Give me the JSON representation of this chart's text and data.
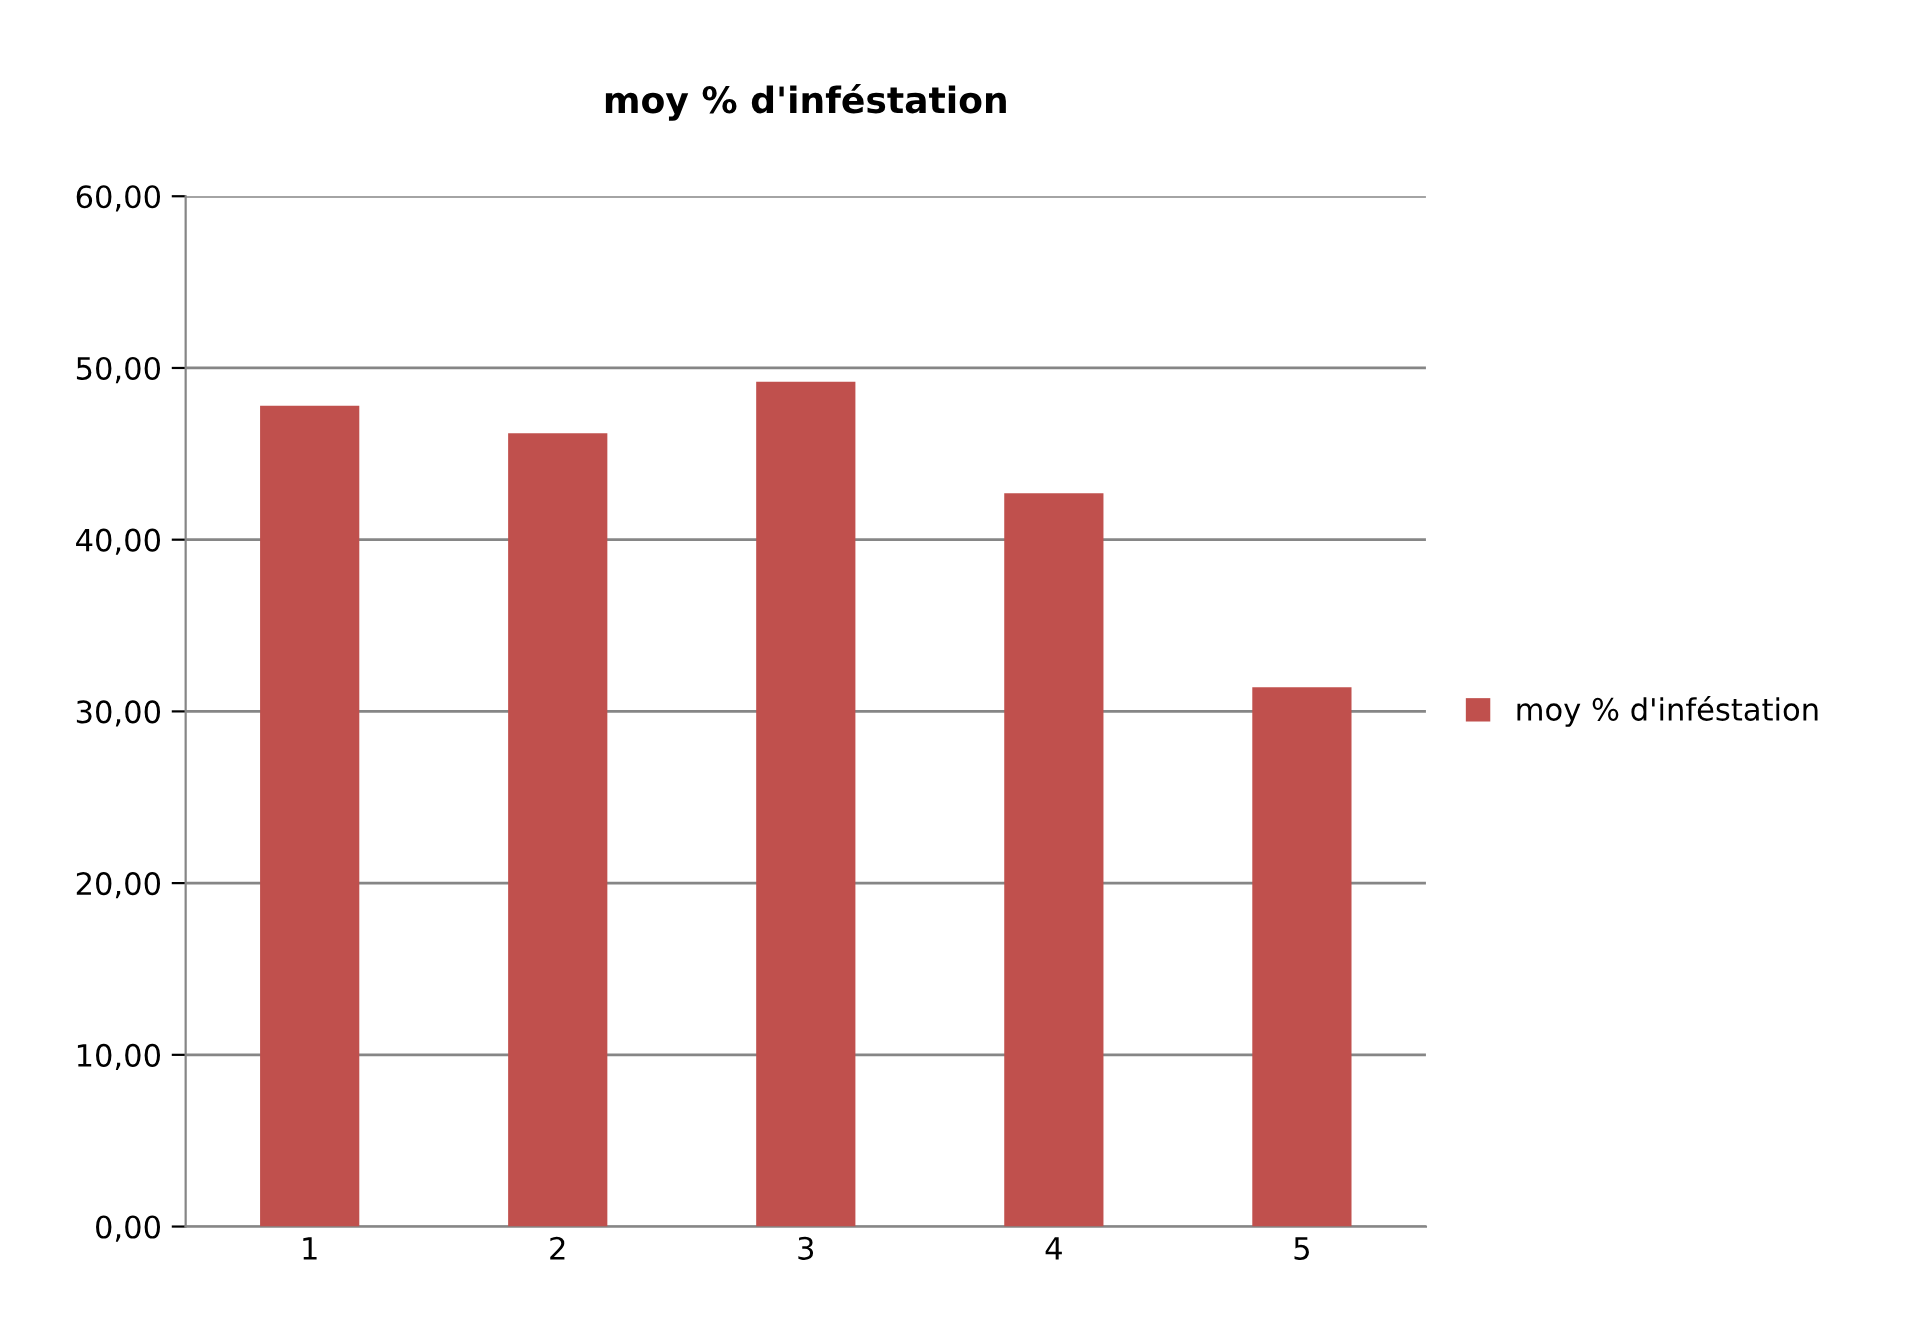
{
  "chart_data": {
    "type": "bar",
    "title": "moy % d'inféstation",
    "categories": [
      "1",
      "2",
      "3",
      "4",
      "5"
    ],
    "series": [
      {
        "name": "moy % d'inféstation",
        "color": "#c0504d",
        "values": [
          47.8,
          46.2,
          49.2,
          42.7,
          31.4
        ]
      }
    ],
    "ylim": [
      0,
      60
    ],
    "yticks": [
      {
        "value": 0,
        "label": "0,00"
      },
      {
        "value": 10,
        "label": "10,00"
      },
      {
        "value": 20,
        "label": "20,00"
      },
      {
        "value": 30,
        "label": "30,00"
      },
      {
        "value": 40,
        "label": "40,00"
      },
      {
        "value": 50,
        "label": "50,00"
      },
      {
        "value": 60,
        "label": "60,00"
      }
    ],
    "grid": "y",
    "legend": "right"
  }
}
